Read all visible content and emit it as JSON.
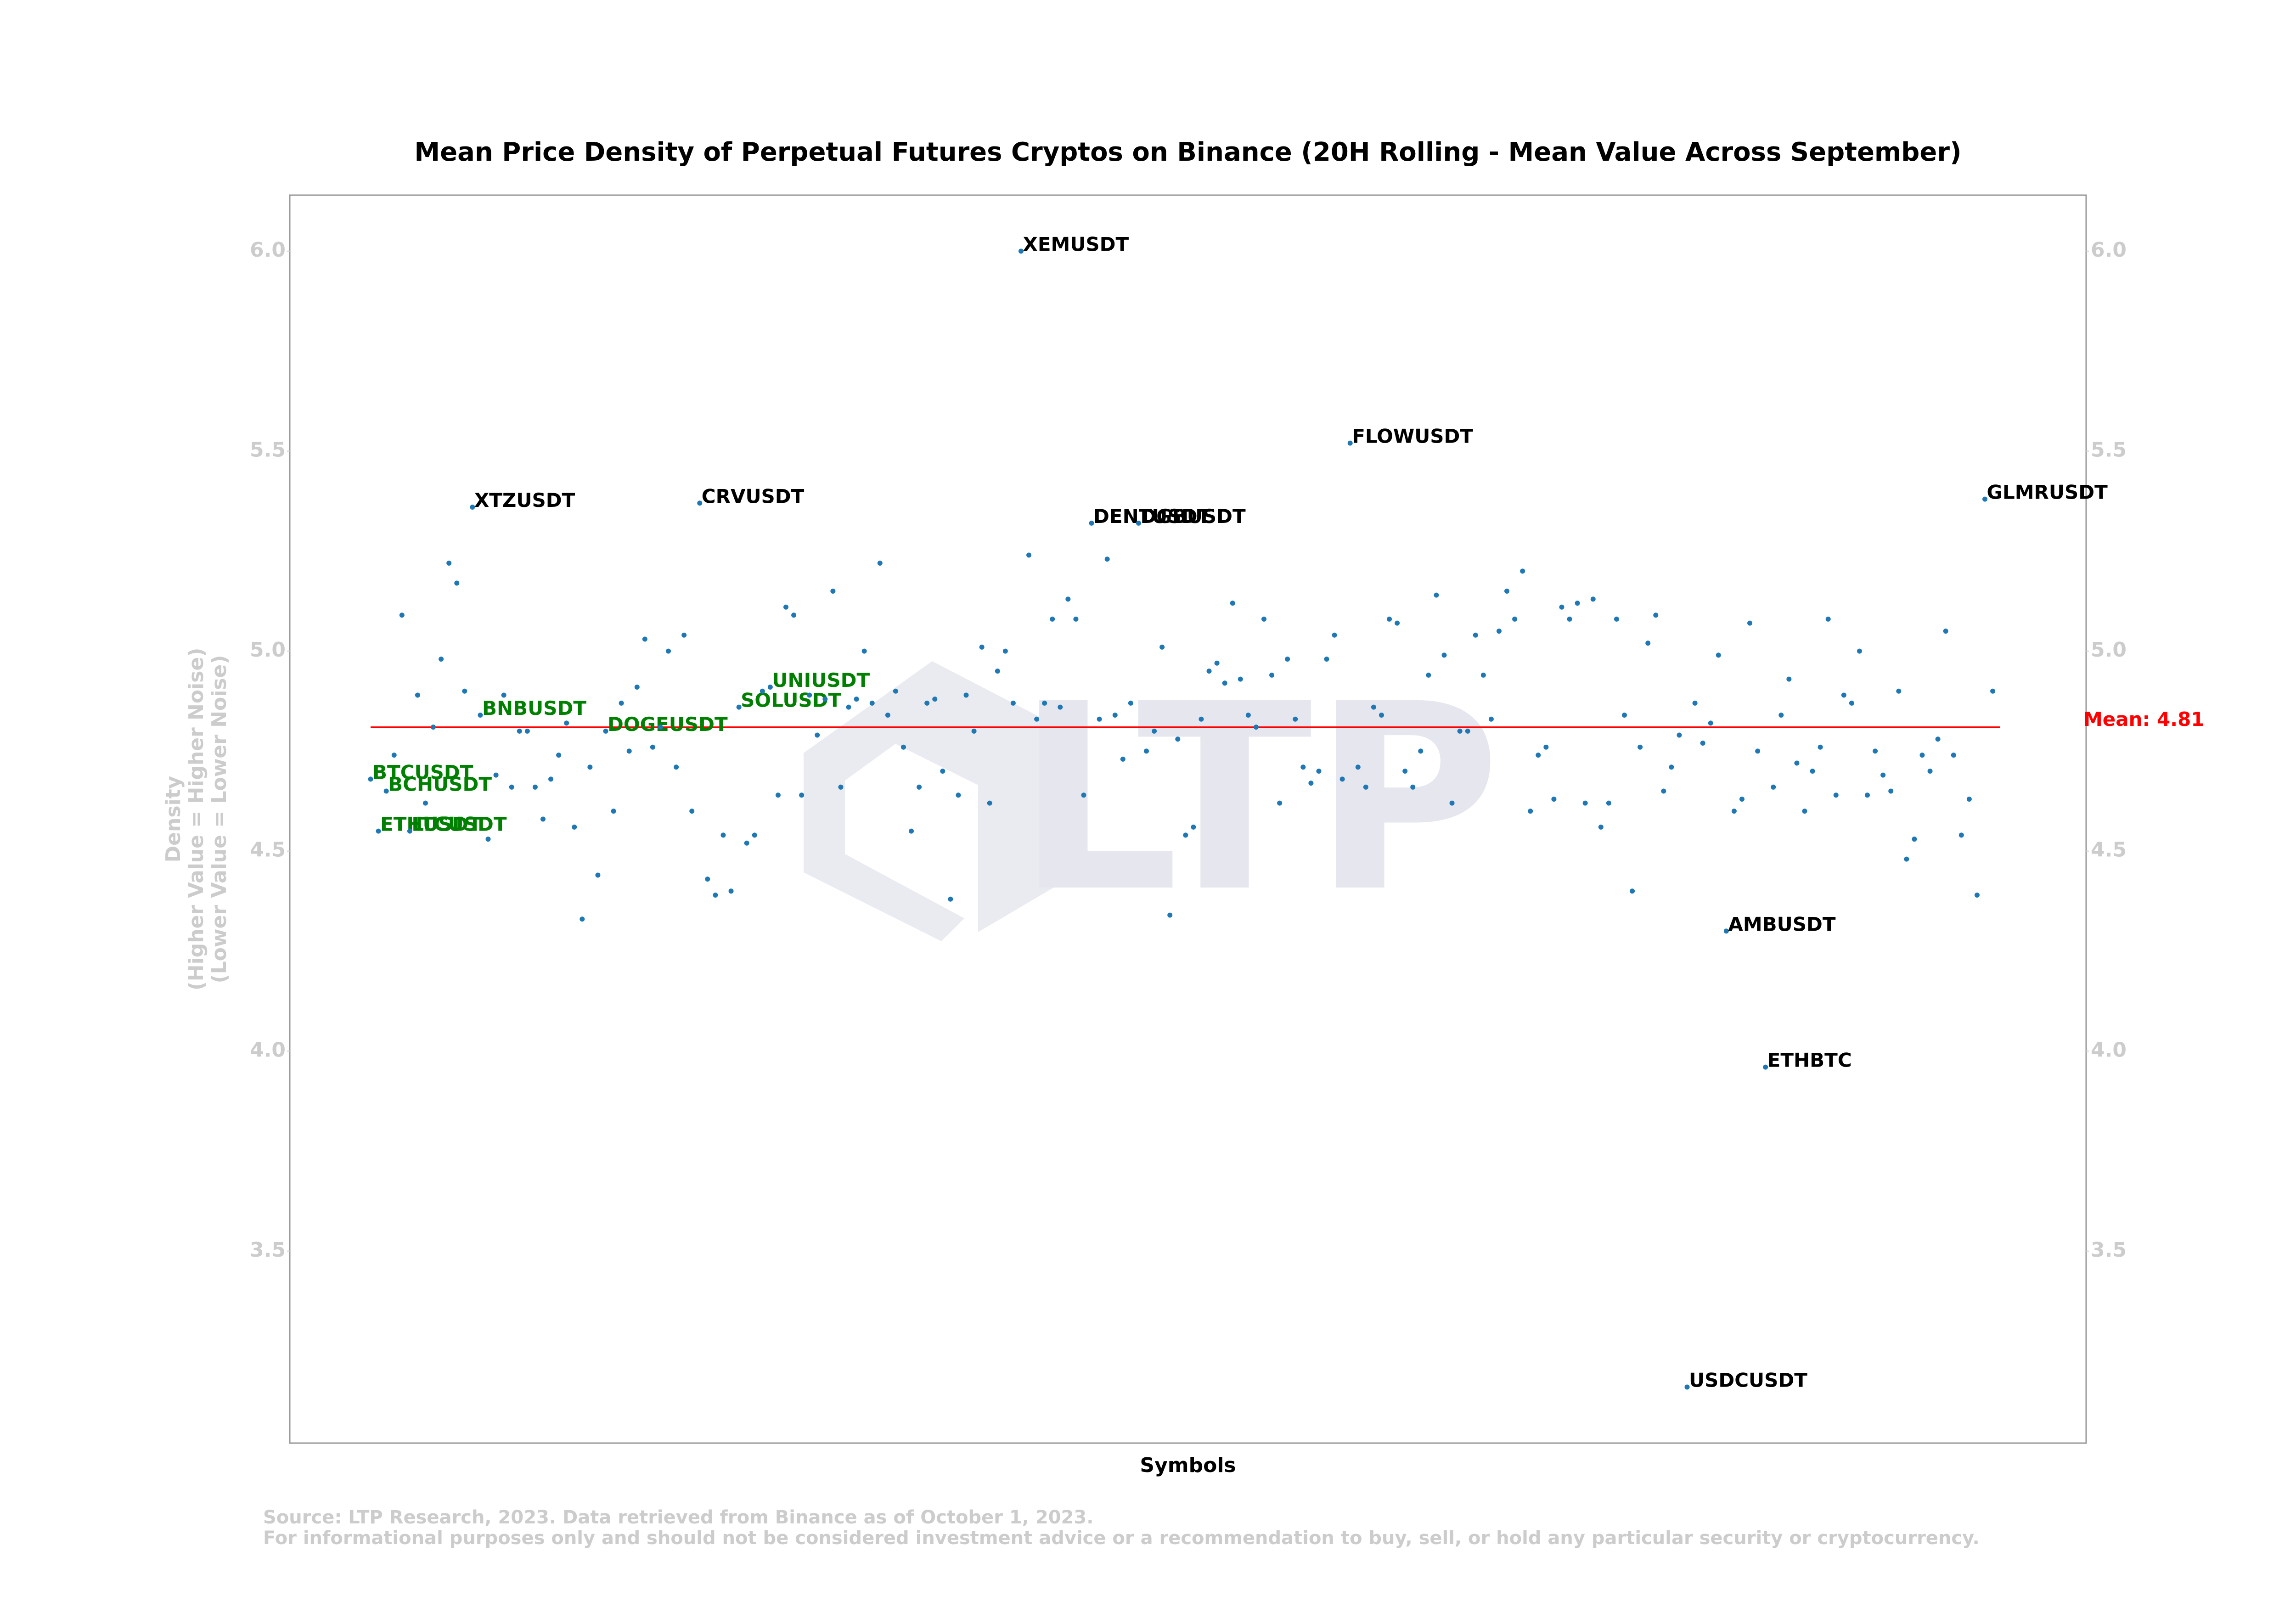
{
  "chart_data": {
    "type": "scatter",
    "title": "Mean Price Density of Perpetual Futures Cryptos on Binance (20H Rolling - Mean Value Across September)",
    "xlabel": "Symbols",
    "ylabel": [
      "Density",
      "(Higher Value = Higher Noise)",
      "(Lower Value = Lower Noise)"
    ],
    "watermark": "LTP",
    "source": [
      "Source: LTP Research, 2023. Data retrieved from Binance as of October 1, 2023.",
      "For informational purposes only and should not be considered investment advice or a recommendation to buy, sell, or hold any particular security or cryptocurrency."
    ],
    "categories": [
      "BTCUSDT",
      "ETHUSDT",
      "BCHUSDT",
      null,
      null,
      "LTCUSDT",
      null,
      null,
      null,
      null,
      null,
      null,
      null,
      "XTZUSDT",
      "BNBUSDT",
      null,
      null,
      null,
      null,
      null,
      null,
      null,
      null,
      null,
      null,
      null,
      null,
      null,
      null,
      null,
      "DOGEUSDT",
      null,
      null,
      null,
      null,
      null,
      null,
      null,
      null,
      null,
      null,
      null,
      "CRVUSDT",
      null,
      null,
      null,
      null,
      "SOLUSDT",
      null,
      null,
      null,
      "UNIUSDT",
      null,
      null,
      null,
      null,
      null,
      null,
      null,
      null,
      null,
      null,
      null,
      null,
      null,
      null,
      null,
      null,
      null,
      null,
      null,
      null,
      null,
      null,
      null,
      null,
      null,
      null,
      null,
      null,
      null,
      null,
      null,
      "XEMUSDT",
      null,
      null,
      null,
      null,
      null,
      null,
      null,
      null,
      "DENTUSDT",
      null,
      null,
      null,
      null,
      null,
      "DGBUSDT",
      null,
      null,
      null,
      null,
      null,
      null,
      null,
      null,
      null,
      null,
      null,
      null,
      null,
      null,
      null,
      null,
      null,
      null,
      null,
      null,
      null,
      null,
      null,
      null,
      null,
      null,
      "FLOWUSDT",
      null,
      null,
      null,
      null,
      null,
      null,
      null,
      null,
      null,
      null,
      null,
      null,
      null,
      null,
      null,
      null,
      null,
      null,
      null,
      null,
      null,
      null,
      null,
      null,
      null,
      null,
      null,
      null,
      null,
      null,
      null,
      null,
      null,
      null,
      null,
      null,
      null,
      null,
      null,
      null,
      null,
      null,
      "USDCUSDT",
      null,
      null,
      null,
      null,
      "AMBUSDT",
      null,
      null,
      null,
      null,
      "ETHBTC",
      null,
      null,
      null,
      null,
      null,
      null,
      null,
      null,
      null,
      null,
      null,
      null,
      null,
      null,
      null,
      null,
      null,
      null,
      null,
      null,
      null,
      null,
      null,
      null,
      null,
      null,
      null,
      "GLMRUSDT",
      null
    ],
    "values": [
      4.68,
      4.55,
      4.65,
      4.74,
      5.09,
      4.55,
      4.89,
      4.62,
      4.81,
      4.98,
      5.22,
      5.17,
      4.9,
      5.36,
      4.84,
      4.53,
      4.69,
      4.89,
      4.66,
      4.8,
      4.8,
      4.66,
      4.58,
      4.68,
      4.74,
      4.82,
      4.56,
      4.33,
      4.71,
      4.44,
      4.8,
      4.6,
      4.87,
      4.75,
      4.91,
      5.03,
      4.76,
      4.81,
      5.0,
      4.71,
      5.04,
      4.6,
      5.37,
      4.43,
      4.39,
      4.54,
      4.4,
      4.86,
      4.52,
      4.54,
      4.9,
      4.91,
      4.64,
      5.11,
      5.09,
      4.64,
      4.89,
      4.79,
      4.88,
      5.15,
      4.66,
      4.86,
      4.88,
      5.0,
      4.87,
      5.22,
      4.84,
      4.9,
      4.76,
      4.55,
      4.66,
      4.87,
      4.88,
      4.7,
      4.38,
      4.64,
      4.89,
      4.8,
      5.01,
      4.62,
      4.95,
      5.0,
      4.87,
      6.0,
      5.24,
      4.83,
      4.87,
      5.08,
      4.86,
      5.13,
      5.08,
      4.64,
      5.32,
      4.83,
      5.23,
      4.84,
      4.73,
      4.87,
      5.32,
      4.75,
      4.8,
      5.01,
      4.34,
      4.78,
      4.54,
      4.56,
      4.83,
      4.95,
      4.97,
      4.92,
      5.12,
      4.93,
      4.84,
      4.81,
      5.08,
      4.94,
      4.62,
      4.98,
      4.83,
      4.71,
      4.67,
      4.7,
      4.98,
      5.04,
      4.68,
      5.52,
      4.71,
      4.66,
      4.86,
      4.84,
      5.08,
      5.07,
      4.7,
      4.66,
      4.75,
      4.94,
      5.14,
      4.99,
      4.62,
      4.8,
      4.8,
      5.04,
      4.94,
      4.83,
      5.05,
      5.15,
      5.08,
      5.2,
      4.6,
      4.74,
      4.76,
      4.63,
      5.11,
      5.08,
      5.12,
      4.62,
      5.13,
      4.56,
      4.62,
      5.08,
      4.84,
      4.4,
      4.76,
      5.02,
      5.09,
      4.65,
      4.71,
      4.79,
      3.16,
      4.87,
      4.77,
      4.82,
      4.99,
      4.3,
      4.6,
      4.63,
      5.07,
      4.75,
      3.96,
      4.66,
      4.84,
      4.93,
      4.72,
      4.6,
      4.7,
      4.76,
      5.08,
      4.64,
      4.89,
      4.87,
      5.0,
      4.64,
      4.75,
      4.69,
      4.65,
      4.9,
      4.48,
      4.53,
      4.74,
      4.7,
      4.78,
      5.05,
      4.74,
      4.54,
      4.63,
      4.39,
      5.38,
      4.9
    ],
    "color": "#1f77b4",
    "label_color": "#000000",
    "highlight_color": "#008000",
    "highlighted": [
      0,
      1,
      2,
      5,
      14,
      30,
      47,
      51
    ],
    "mean": {
      "value": 4.81,
      "label": "Mean: 4.81",
      "color": "#ff0000"
    },
    "ylim": [
      3.02,
      6.14
    ],
    "yticks": [
      3.5,
      {
        "value": 4,
        "label": "4.0"
      },
      4.5,
      {
        "value": 5,
        "label": "5.0"
      },
      5.5,
      {
        "value": 6,
        "label": "6.0"
      }
    ],
    "grid": false
  }
}
